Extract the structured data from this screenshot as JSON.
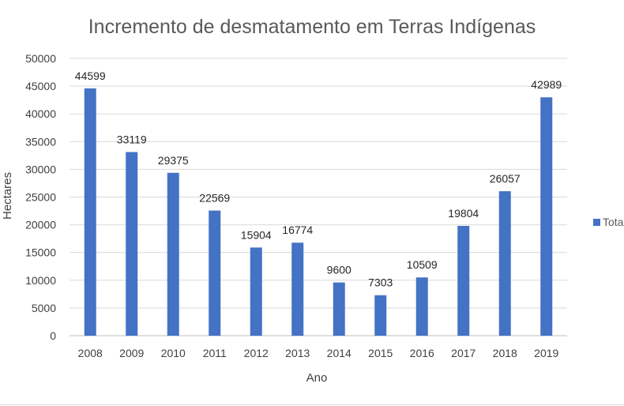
{
  "chart_data": {
    "type": "bar",
    "title": "Incremento de desmatamento em Terras Indígenas",
    "xlabel": "Ano",
    "ylabel": "Hectares",
    "ylim": [
      0,
      50000
    ],
    "yticks": [
      0,
      5000,
      10000,
      15000,
      20000,
      25000,
      30000,
      35000,
      40000,
      45000,
      50000
    ],
    "grid": true,
    "legend_position": "right",
    "categories": [
      "2008",
      "2009",
      "2010",
      "2011",
      "2012",
      "2013",
      "2014",
      "2015",
      "2016",
      "2017",
      "2018",
      "2019"
    ],
    "series": [
      {
        "name": "Total",
        "color": "#4472c4",
        "values": [
          44599,
          33119,
          29375,
          22569,
          15904,
          16774,
          9600,
          7303,
          10509,
          19804,
          26057,
          42989
        ]
      }
    ]
  }
}
